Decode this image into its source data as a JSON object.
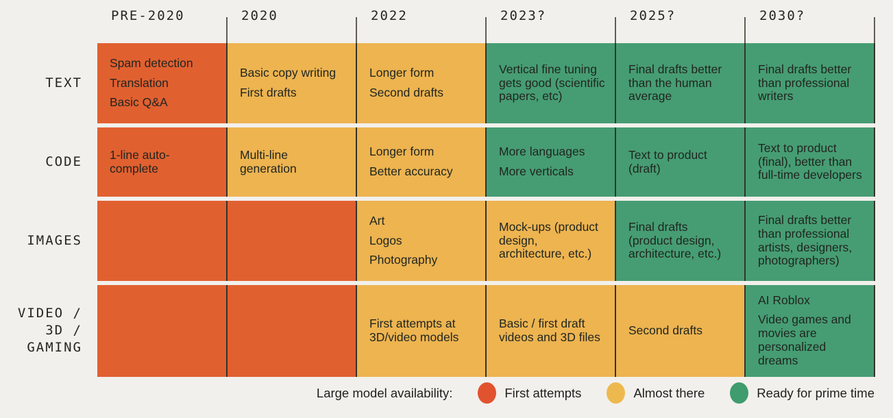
{
  "chart_data": {
    "type": "table",
    "columns": [
      "PRE-2020",
      "2020",
      "2022",
      "2023?",
      "2025?",
      "2030?"
    ],
    "rows": [
      {
        "label": "TEXT",
        "cells": [
          {
            "status": "first",
            "items": [
              "Spam detection",
              "Translation",
              "Basic Q&A"
            ]
          },
          {
            "status": "almost",
            "items": [
              "Basic copy writing",
              "First drafts"
            ]
          },
          {
            "status": "almost",
            "items": [
              "Longer form",
              "Second drafts"
            ]
          },
          {
            "status": "ready",
            "items": [
              "Vertical fine tuning gets good (scientific papers, etc)"
            ]
          },
          {
            "status": "ready",
            "items": [
              "Final drafts better than the human average"
            ]
          },
          {
            "status": "ready",
            "items": [
              "Final drafts better than professional writers"
            ]
          }
        ]
      },
      {
        "label": "CODE",
        "cells": [
          {
            "status": "first",
            "items": [
              "1-line auto-complete"
            ]
          },
          {
            "status": "almost",
            "items": [
              "Multi-line generation"
            ]
          },
          {
            "status": "almost",
            "items": [
              "Longer form",
              "Better accuracy"
            ]
          },
          {
            "status": "ready",
            "items": [
              "More languages",
              "More verticals"
            ]
          },
          {
            "status": "ready",
            "items": [
              "Text to product (draft)"
            ]
          },
          {
            "status": "ready",
            "items": [
              "Text to product (final), better than full-time developers"
            ]
          }
        ]
      },
      {
        "label": "IMAGES",
        "cells": [
          {
            "status": "first",
            "items": []
          },
          {
            "status": "first",
            "items": []
          },
          {
            "status": "almost",
            "items": [
              "Art",
              "Logos",
              "Photography"
            ]
          },
          {
            "status": "almost",
            "items": [
              "Mock-ups (product design, architecture, etc.)"
            ]
          },
          {
            "status": "ready",
            "items": [
              "Final drafts (product design, architecture, etc.)"
            ]
          },
          {
            "status": "ready",
            "items": [
              "Final drafts better than professional artists, designers, photographers)"
            ]
          }
        ]
      },
      {
        "label": "VIDEO /\n3D /\nGAMING",
        "cells": [
          {
            "status": "first",
            "items": []
          },
          {
            "status": "first",
            "items": []
          },
          {
            "status": "almost",
            "items": [
              "First attempts at 3D/video models"
            ]
          },
          {
            "status": "almost",
            "items": [
              "Basic / first draft videos and 3D files"
            ]
          },
          {
            "status": "almost",
            "items": [
              "Second drafts"
            ]
          },
          {
            "status": "ready",
            "items": [
              "AI Roblox",
              "Video games and movies are personalized dreams"
            ]
          }
        ]
      }
    ],
    "legend_title": "Large model availability:",
    "legend": [
      {
        "label": "First attempts",
        "status": "first",
        "color": "#E1532F"
      },
      {
        "label": "Almost there",
        "status": "almost",
        "color": "#EDB94F"
      },
      {
        "label": "Ready for prime time",
        "status": "ready",
        "color": "#3F9C6E"
      }
    ],
    "colors": {
      "background": "#F2F0EC",
      "first": "#E16030",
      "almost": "#EDB450",
      "ready": "#469D73",
      "divider": "#35332C",
      "text": "#212620"
    }
  }
}
